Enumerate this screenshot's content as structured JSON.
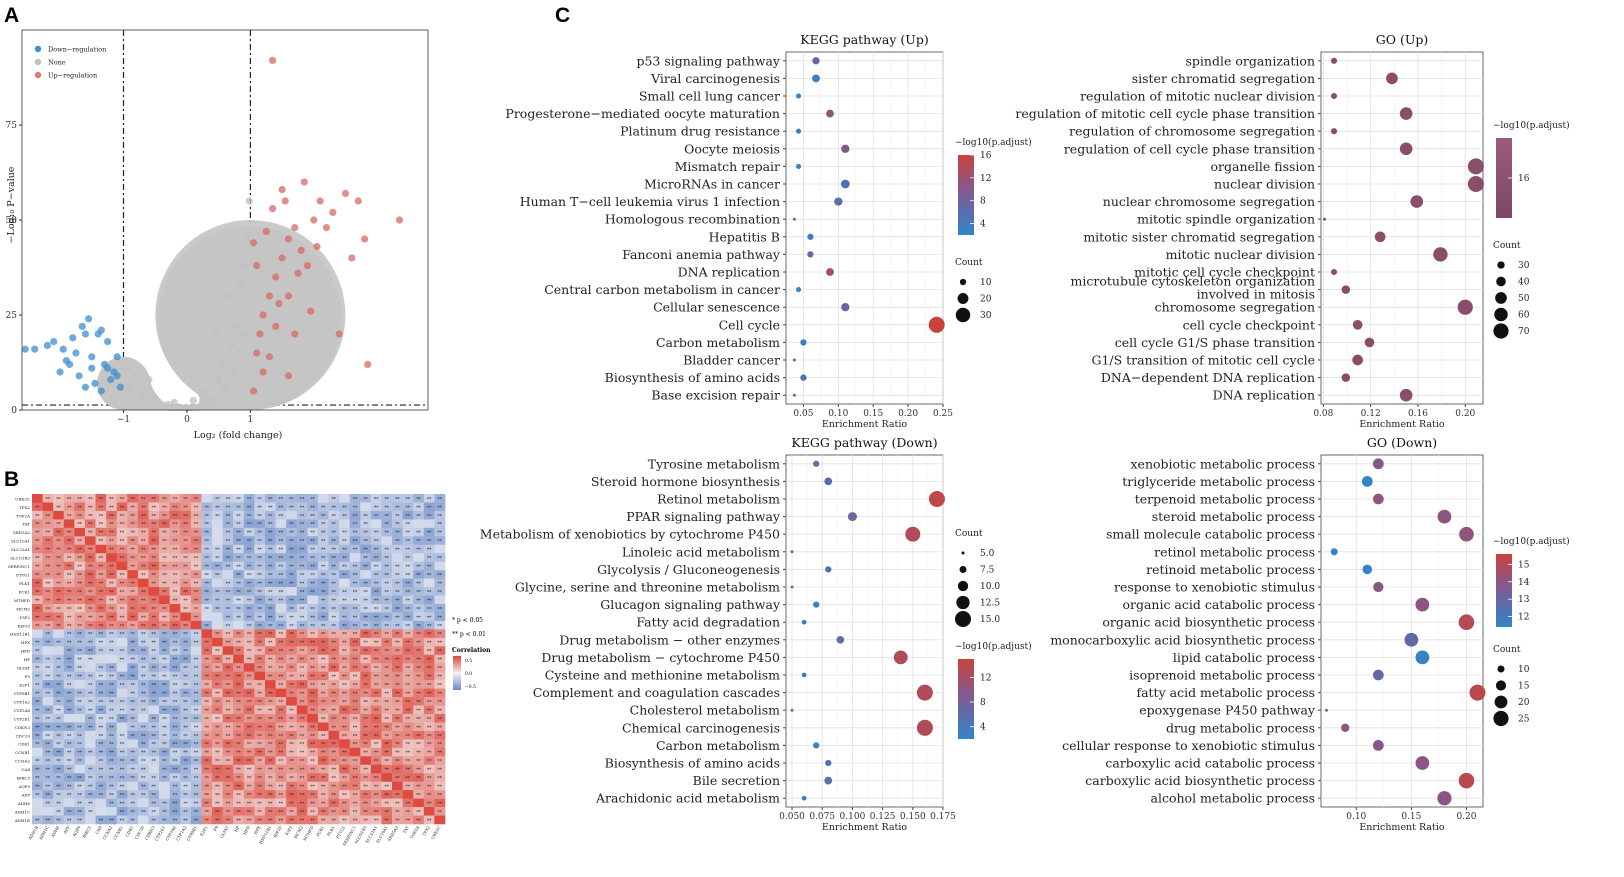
{
  "panel_labels": {
    "a": "A",
    "b": "B",
    "c": "C"
  },
  "chart_data": [
    {
      "id": "volcano",
      "type": "scatter",
      "xlabel": "Log₂ (fold change)",
      "ylabel": "−Log₁₀ P−value",
      "xlim": [
        -2.6,
        3.8
      ],
      "ylim": [
        0,
        100
      ],
      "x_ticks": [
        "−1",
        "0",
        "1"
      ],
      "x_tick_values": [
        -1,
        0,
        1
      ],
      "y_ticks": [
        "0",
        "25",
        "50",
        "75"
      ],
      "y_tick_values": [
        0,
        25,
        50,
        75
      ],
      "thresholds": {
        "fold_change": [
          -1,
          1
        ],
        "p_line": 1.3
      },
      "legend": [
        {
          "name": "Down−regulation",
          "color": "#3d8fcf"
        },
        {
          "name": "None",
          "color": "#c0c0c0"
        },
        {
          "name": "Up−regulation",
          "color": "#e07a72"
        }
      ],
      "groups": {
        "down": {
          "color": "#3d8fcf",
          "points": [
            [
              -1.15,
              10
            ],
            [
              -1.3,
              12
            ],
            [
              -1.5,
              11
            ],
            [
              -1.7,
              9
            ],
            [
              -1.9,
              13
            ],
            [
              -2.4,
              16
            ],
            [
              -2.2,
              17
            ],
            [
              -1.8,
              19
            ],
            [
              -1.6,
              20
            ],
            [
              -1.4,
              20
            ],
            [
              -1.25,
              18
            ],
            [
              -1.1,
              14
            ],
            [
              -1.2,
              8
            ],
            [
              -1.45,
              7
            ],
            [
              -1.75,
              15
            ],
            [
              -2.0,
              10
            ],
            [
              -2.55,
              16
            ],
            [
              -1.35,
              21
            ],
            [
              -1.55,
              24
            ],
            [
              -1.65,
              22
            ],
            [
              -1.05,
              6
            ],
            [
              -1.1,
              9
            ],
            [
              -1.35,
              5
            ],
            [
              -1.6,
              6
            ],
            [
              -1.85,
              12
            ],
            [
              -2.1,
              18
            ],
            [
              -1.95,
              16
            ],
            [
              -1.25,
              11
            ],
            [
              -1.5,
              14
            ]
          ]
        },
        "none": {
          "color": "#c0c0c0",
          "points": [
            [
              -0.9,
              6
            ],
            [
              -0.7,
              4
            ],
            [
              -0.5,
              3
            ],
            [
              -0.3,
              1.5
            ],
            [
              0,
              0.5
            ],
            [
              0.2,
              1
            ],
            [
              0.4,
              3
            ],
            [
              0.6,
              6
            ],
            [
              0.75,
              10
            ],
            [
              0.85,
              15
            ],
            [
              0.9,
              20
            ],
            [
              0.95,
              26
            ],
            [
              0.8,
              22
            ],
            [
              0.7,
              17
            ],
            [
              0.55,
              12
            ],
            [
              -0.6,
              8
            ],
            [
              -0.8,
              9
            ],
            [
              0.3,
              5
            ],
            [
              0.65,
              30
            ],
            [
              0.9,
              38
            ],
            [
              0.95,
              45
            ],
            [
              0.85,
              33
            ],
            [
              0.5,
              8
            ],
            [
              -0.2,
              2
            ],
            [
              0.1,
              2.5
            ],
            [
              -0.95,
              11
            ],
            [
              0.45,
              20
            ],
            [
              0.98,
              55
            ]
          ]
        },
        "up": {
          "color": "#d86a64",
          "points": [
            [
              1.05,
              5
            ],
            [
              1.1,
              15
            ],
            [
              1.2,
              25
            ],
            [
              1.3,
              30
            ],
            [
              1.4,
              35
            ],
            [
              1.5,
              40
            ],
            [
              1.6,
              45
            ],
            [
              1.7,
              48
            ],
            [
              1.8,
              42
            ],
            [
              1.9,
              38
            ],
            [
              2.0,
              50
            ],
            [
              2.1,
              55
            ],
            [
              2.3,
              52
            ],
            [
              2.5,
              57
            ],
            [
              2.7,
              55
            ],
            [
              2.8,
              45
            ],
            [
              1.1,
              38
            ],
            [
              1.25,
              47
            ],
            [
              1.35,
              53
            ],
            [
              1.55,
              55
            ],
            [
              1.15,
              20
            ],
            [
              1.2,
              10
            ],
            [
              1.4,
              22
            ],
            [
              1.6,
              30
            ],
            [
              1.75,
              36
            ],
            [
              2.2,
              48
            ],
            [
              1.3,
              14
            ],
            [
              1.45,
              28
            ],
            [
              1.95,
              26
            ],
            [
              2.4,
              20
            ],
            [
              2.85,
              12
            ],
            [
              1.05,
              44
            ],
            [
              1.5,
              58
            ],
            [
              1.85,
              60
            ],
            [
              3.35,
              50
            ],
            [
              2.6,
              40
            ],
            [
              1.7,
              20
            ],
            [
              1.6,
              9
            ],
            [
              2.05,
              43
            ],
            [
              1.35,
              92
            ]
          ]
        }
      }
    },
    {
      "id": "correlation",
      "type": "heatmap",
      "genes": [
        "UBE2C",
        "TPX2",
        "TOP2A",
        "TAT",
        "SRD5A2",
        "SLC10A1",
        "SLC22A1",
        "SLCO1B3",
        "SERPINC1",
        "PTTG1",
        "PLK1",
        "PCK1",
        "MTHFD",
        "MCM2",
        "IGF2",
        "KIF20",
        "HSD11B1",
        "HPX",
        "HPD",
        "HP",
        "GLYAT",
        "F9",
        "E2F1",
        "CYP8B1",
        "CYP1A2",
        "CYP2A6",
        "CYP2E1",
        "CDKN3",
        "CDC20",
        "CDK1",
        "CCNB1",
        "CCNA2",
        "CA8",
        "BIRC5",
        "AQP9",
        "APF",
        "ADH6",
        "ADH1C",
        "ADH1B"
      ],
      "legend_title": "Correlation",
      "legend_ticks": [
        "0.5",
        "0.0",
        "−0.5"
      ],
      "sig_notes": [
        "* p < 0.05",
        "** p < 0.01"
      ],
      "sig_mark": "**",
      "proliferation_block": 16
    },
    {
      "id": "kegg_up",
      "type": "scatter",
      "title": "KEGG pathway (Up)",
      "xlabel": "Enrichment Ratio",
      "xlim": [
        0.025,
        0.25
      ],
      "ticks": [
        "0.05",
        "0.10",
        "0.15",
        "0.20",
        "0.25"
      ],
      "tick_values": [
        0.05,
        0.1,
        0.15,
        0.2,
        0.25
      ],
      "terms": [
        "p53 signaling pathway",
        "Viral carcinogenesis",
        "Small cell lung cancer",
        "Progesterone−mediated oocyte maturation",
        "Platinum drug resistance",
        "Oocyte meiosis",
        "Mismatch repair",
        "MicroRNAs in cancer",
        "Human T−cell leukemia virus 1 infection",
        "Homologous recombination",
        "Hepatitis B",
        "Fanconi anemia pathway",
        "DNA replication",
        "Central carbon metabolism in cancer",
        "Cellular senescence",
        "Cell cycle",
        "Carbon metabolism",
        "Bladder cancer",
        "Biosynthesis of amino acids",
        "Base excision repair"
      ],
      "x": [
        0.068,
        0.068,
        0.043,
        0.088,
        0.043,
        0.11,
        0.043,
        0.11,
        0.1,
        0.037,
        0.06,
        0.06,
        0.088,
        0.043,
        0.11,
        0.241,
        0.05,
        0.037,
        0.05,
        0.037
      ],
      "count": [
        12,
        13,
        8,
        13,
        8,
        14,
        8,
        15,
        14,
        5,
        10,
        10,
        13,
        8,
        14,
        35,
        10,
        5,
        10,
        5
      ],
      "padj": [
        7,
        3,
        3,
        11,
        3,
        10,
        3,
        5,
        6,
        3,
        4,
        7,
        13,
        3,
        7,
        16,
        3,
        4,
        5,
        3
      ],
      "color_legend": {
        "title": "−log10(p.adjust)",
        "ticks": [
          "16",
          "12",
          "8",
          "4"
        ],
        "tick_values": [
          16,
          12,
          8,
          4
        ],
        "range": [
          2,
          16
        ]
      },
      "size_legend": {
        "title": "Count",
        "values": [
          10,
          20,
          30
        ],
        "labels": [
          "10",
          "20",
          "30"
        ]
      }
    },
    {
      "id": "go_up",
      "type": "scatter",
      "title": "GO (Up)",
      "xlabel": "Enrichment Ratio",
      "xlim": [
        0.078,
        0.215
      ],
      "ticks": [
        "0.08",
        "0.12",
        "0.16",
        "0.20"
      ],
      "tick_values": [
        0.08,
        0.12,
        0.16,
        0.2
      ],
      "terms": [
        "spindle organization",
        "sister chromatid segregation",
        "regulation of mitotic nuclear division",
        "regulation of mitotic cell cycle phase transition",
        "regulation of chromosome segregation",
        "regulation of cell cycle phase transition",
        "organelle fission",
        "nuclear division",
        "nuclear chromosome segregation",
        "mitotic spindle organization",
        "mitotic sister chromatid segregation",
        "mitotic nuclear division",
        "mitotic cell cycle checkpoint",
        "microtubule cytoskeleton organization involved in mitosis",
        "chromosome segregation",
        "cell cycle checkpoint",
        "cell cycle G1/S phase transition",
        "G1/S transition of mitotic cell cycle",
        "DNA−dependent DNA replication",
        "DNA replication"
      ],
      "term_lines": [
        [
          "spindle organization"
        ],
        [
          "sister chromatid segregation"
        ],
        [
          "regulation of mitotic nuclear division"
        ],
        [
          "regulation of mitotic cell cycle phase transition"
        ],
        [
          "regulation of chromosome segregation"
        ],
        [
          "regulation of cell cycle phase transition"
        ],
        [
          "organelle fission"
        ],
        [
          "nuclear division"
        ],
        [
          "nuclear chromosome segregation"
        ],
        [
          "mitotic spindle organization"
        ],
        [
          "mitotic sister chromatid segregation"
        ],
        [
          "mitotic nuclear division"
        ],
        [
          "mitotic cell cycle checkpoint"
        ],
        [
          "microtubule cytoskeleton organization",
          "involved in mitosis"
        ],
        [
          "chromosome segregation"
        ],
        [
          "cell cycle checkpoint"
        ],
        [
          "cell cycle G1/S phase transition"
        ],
        [
          "G1/S transition of mitotic cell cycle"
        ],
        [
          "DNA−dependent DNA replication"
        ],
        [
          "DNA replication"
        ]
      ],
      "x": [
        0.089,
        0.138,
        0.089,
        0.15,
        0.089,
        0.15,
        0.209,
        0.209,
        0.159,
        0.081,
        0.128,
        0.179,
        0.089,
        0.099,
        0.2,
        0.109,
        0.119,
        0.109,
        0.099,
        0.15
      ],
      "count": [
        25,
        50,
        25,
        55,
        25,
        55,
        75,
        75,
        55,
        15,
        45,
        65,
        25,
        35,
        70,
        40,
        40,
        45,
        35,
        55
      ],
      "color_legend": {
        "title": "−log10(p.adjust)",
        "ticks": [
          "16"
        ],
        "tick_values": [
          16
        ],
        "range": [
          14.5,
          17.5
        ]
      },
      "size_legend": {
        "title": "Count",
        "values": [
          30,
          40,
          50,
          60,
          70
        ],
        "labels": [
          "30",
          "40",
          "50",
          "60",
          "70"
        ]
      }
    },
    {
      "id": "kegg_down",
      "type": "scatter",
      "title": "KEGG pathway (Down)",
      "xlabel": "Enrichment Ratio",
      "xlim": [
        0.045,
        0.175
      ],
      "ticks": [
        "0.050",
        "0.075",
        "0.100",
        "0.125",
        "0.150",
        "0.175"
      ],
      "tick_values": [
        0.05,
        0.075,
        0.1,
        0.125,
        0.15,
        0.175
      ],
      "terms": [
        "Tyrosine metabolism",
        "Steroid hormone biosynthesis",
        "Retinol metabolism",
        "PPAR signaling pathway",
        "Metabolism of xenobiotics by cytochrome P450",
        "Linoleic acid metabolism",
        "Glycolysis / Gluconeogenesis",
        "Glycine, serine and threonine metabolism",
        "Glucagon signaling pathway",
        "Fatty acid degradation",
        "Drug metabolism − other enzymes",
        "Drug metabolism − cytochrome P450",
        "Cysteine and methionine metabolism",
        "Complement and coagulation cascades",
        "Cholesterol metabolism",
        "Chemical carcinogenesis",
        "Carbon metabolism",
        "Biosynthesis of amino acids",
        "Bile secretion",
        "Arachidonic acid metabolism"
      ],
      "x": [
        0.07,
        0.08,
        0.17,
        0.1,
        0.15,
        0.05,
        0.08,
        0.05,
        0.07,
        0.06,
        0.09,
        0.14,
        0.06,
        0.16,
        0.05,
        0.16,
        0.07,
        0.08,
        0.08,
        0.06
      ],
      "count": [
        7,
        8,
        15,
        9,
        14,
        5,
        7,
        5,
        7,
        6,
        8,
        13,
        6,
        15,
        5,
        15,
        7,
        7,
        8,
        6
      ],
      "padj": [
        6,
        6,
        14,
        7,
        13,
        4,
        5,
        3,
        3,
        4,
        6,
        13,
        4,
        13,
        3,
        13,
        3,
        5,
        6,
        4
      ],
      "color_legend": {
        "title": "−log10(p.adjust)",
        "ticks": [
          "12",
          "8",
          "4"
        ],
        "tick_values": [
          12,
          8,
          4
        ],
        "range": [
          2,
          15
        ]
      },
      "size_legend": {
        "title": "Count",
        "values": [
          5,
          7.5,
          10,
          12.5,
          15
        ],
        "labels": [
          "5.0",
          "7.5",
          "10.0",
          "12.5",
          "15.0"
        ]
      }
    },
    {
      "id": "go_down",
      "type": "scatter",
      "title": "GO (Down)",
      "xlabel": "Enrichment Ratio",
      "xlim": [
        0.068,
        0.215
      ],
      "ticks": [
        "0.10",
        "0.15",
        "0.20"
      ],
      "tick_values": [
        0.1,
        0.15,
        0.2
      ],
      "terms": [
        "xenobiotic metabolic process",
        "triglyceride metabolic process",
        "terpenoid metabolic process",
        "steroid metabolic process",
        "small molecule catabolic process",
        "retinol metabolic process",
        "retinoid metabolic process",
        "response to xenobiotic stimulus",
        "organic acid catabolic process",
        "organic acid biosynthetic process",
        "monocarboxylic acid biosynthetic process",
        "lipid catabolic process",
        "isoprenoid metabolic process",
        "fatty acid metabolic process",
        "epoxygenase P450 pathway",
        "drug metabolic process",
        "cellular response to xenobiotic stimulus",
        "carboxylic acid catabolic process",
        "carboxylic acid biosynthetic process",
        "alcohol metabolic process"
      ],
      "x": [
        0.12,
        0.11,
        0.12,
        0.18,
        0.2,
        0.08,
        0.11,
        0.12,
        0.16,
        0.2,
        0.15,
        0.16,
        0.12,
        0.21,
        0.073,
        0.09,
        0.12,
        0.16,
        0.2,
        0.18
      ],
      "count": [
        16,
        16,
        16,
        22,
        24,
        10,
        14,
        15,
        22,
        26,
        22,
        22,
        16,
        27,
        5,
        12,
        16,
        22,
        26,
        23
      ],
      "padj": [
        13.8,
        11.5,
        14.2,
        14,
        14.1,
        11.5,
        11.6,
        13.9,
        14,
        15.1,
        12.8,
        11.6,
        12.9,
        15.2,
        12.5,
        14,
        13.9,
        14,
        15.2,
        14
      ],
      "color_legend": {
        "title": "−log10(p.adjust)",
        "ticks": [
          "15",
          "14",
          "13",
          "12"
        ],
        "tick_values": [
          15,
          14,
          13,
          12
        ],
        "range": [
          11.4,
          15.6
        ]
      },
      "size_legend": {
        "title": "Count",
        "values": [
          10,
          15,
          20,
          25
        ],
        "labels": [
          "10",
          "15",
          "20",
          "25"
        ]
      }
    }
  ]
}
